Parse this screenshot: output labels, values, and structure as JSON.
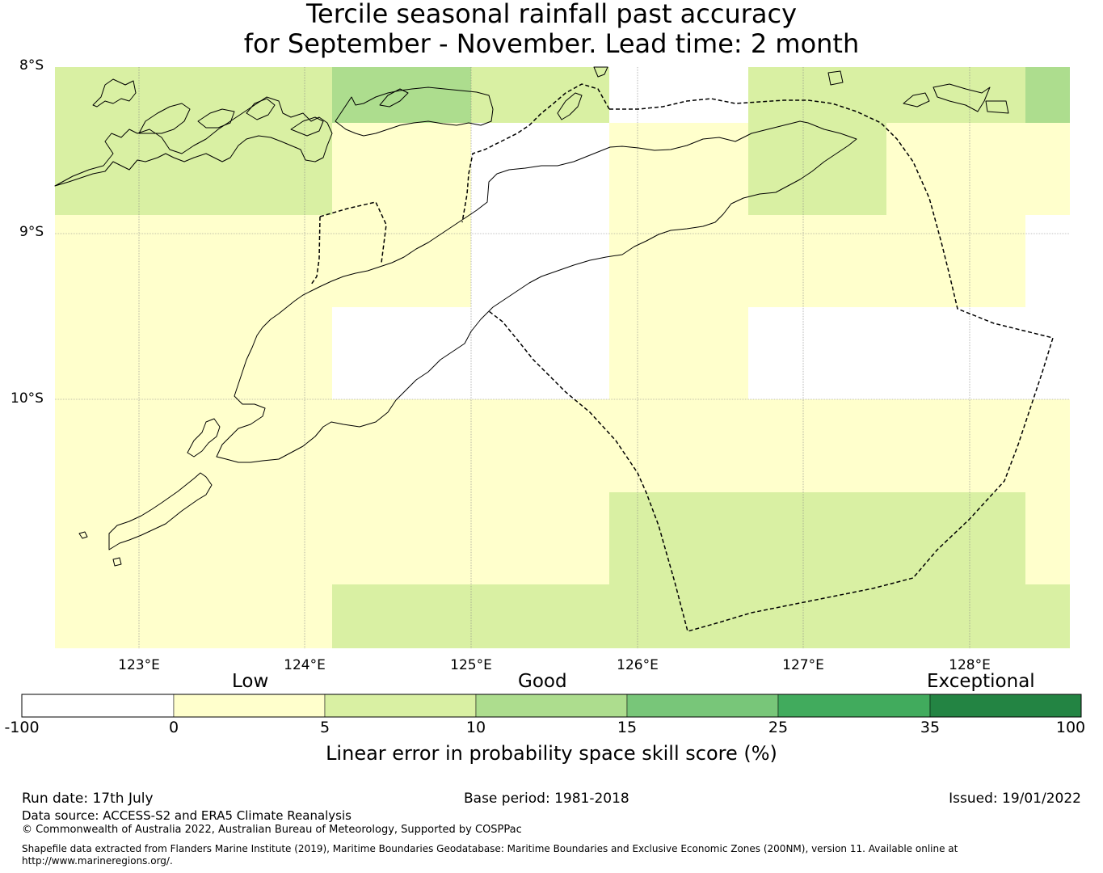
{
  "title": {
    "line1": "Tercile seasonal rainfall past accuracy",
    "line2": "for September - November. Lead time: 2 month"
  },
  "map": {
    "lat_labels": [
      "8°S",
      "9°S",
      "10°S"
    ],
    "lon_labels": [
      "123°E",
      "124°E",
      "125°E",
      "126°E",
      "127°E",
      "128°E"
    ],
    "grid": "on",
    "colors": {
      "white": "#ffffff",
      "low": "#ffffcc",
      "good_low": "#d9f0a3",
      "good_mid": "#addd8e",
      "good_high": "#78c679",
      "excellent_low": "#41ab5d",
      "excellent_high": "#238443"
    }
  },
  "colorbar": {
    "categories": [
      "Low",
      "Good",
      "Exceptional"
    ],
    "ticks": [
      "-100",
      "0",
      "5",
      "10",
      "15",
      "25",
      "35",
      "100"
    ],
    "colors": [
      "#ffffff",
      "#ffffcc",
      "#d9f0a3",
      "#addd8e",
      "#78c679",
      "#41ab5d",
      "#238443"
    ],
    "label": "Linear error in probability space skill score (%)"
  },
  "footer": {
    "run_date": "Run date: 17th July",
    "base_period": "Base period: 1981-2018",
    "issued": "Issued: 19/01/2022",
    "data_source": "Data source: ACCESS-S2 and ERA5 Climate Reanalysis",
    "copyright": "© Commonwealth of Australia 2022, Australian Bureau of Meteorology, Supported by COSPPac",
    "shapefile": "Shapefile data extracted from Flanders Marine Institute (2019), Maritime Boundaries Geodatabase: Maritime Boundaries and Exclusive Economic Zones (200NM), version 11. Available online at http://www.marineregions.org/."
  }
}
